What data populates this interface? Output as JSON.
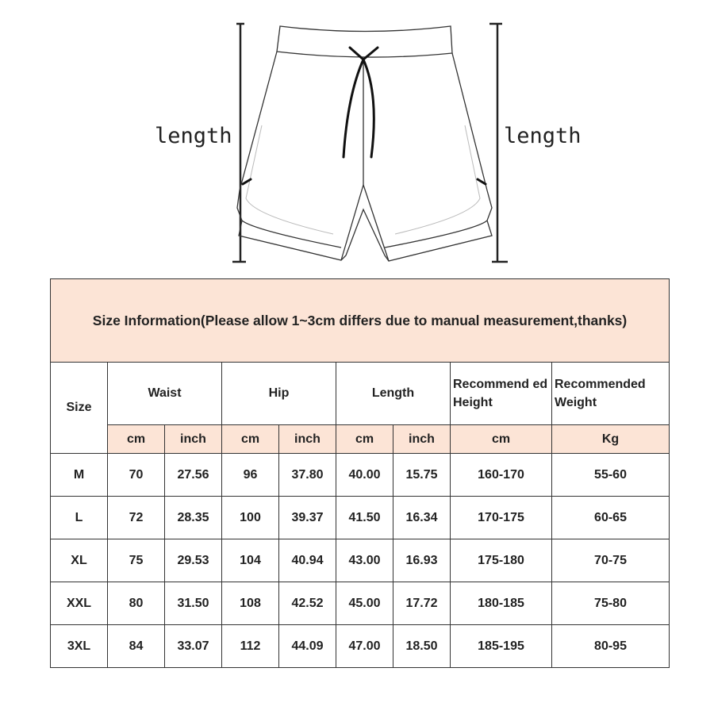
{
  "diagram": {
    "left_label": "length",
    "right_label": "length"
  },
  "table": {
    "title": "Size Information(Please allow 1~3cm differs due to manual measurement,thanks)",
    "headers": {
      "size": "Size",
      "waist": "Waist",
      "hip": "Hip",
      "length": "Length",
      "height": "Recommend ed Height",
      "weight": "Recommended Weight"
    },
    "units": [
      "cm",
      "inch",
      "cm",
      "inch",
      "cm",
      "inch",
      "cm",
      "Kg"
    ],
    "rows": [
      [
        "M",
        "70",
        "27.56",
        "96",
        "37.80",
        "40.00",
        "15.75",
        "160-170",
        "55-60"
      ],
      [
        "L",
        "72",
        "28.35",
        "100",
        "39.37",
        "41.50",
        "16.34",
        "170-175",
        "60-65"
      ],
      [
        "XL",
        "75",
        "29.53",
        "104",
        "40.94",
        "43.00",
        "16.93",
        "175-180",
        "70-75"
      ],
      [
        "XXL",
        "80",
        "31.50",
        "108",
        "42.52",
        "45.00",
        "17.72",
        "180-185",
        "75-80"
      ],
      [
        "3XL",
        "84",
        "33.07",
        "112",
        "44.09",
        "47.00",
        "18.50",
        "185-195",
        "80-95"
      ]
    ],
    "header_color": "#fce4d6"
  }
}
